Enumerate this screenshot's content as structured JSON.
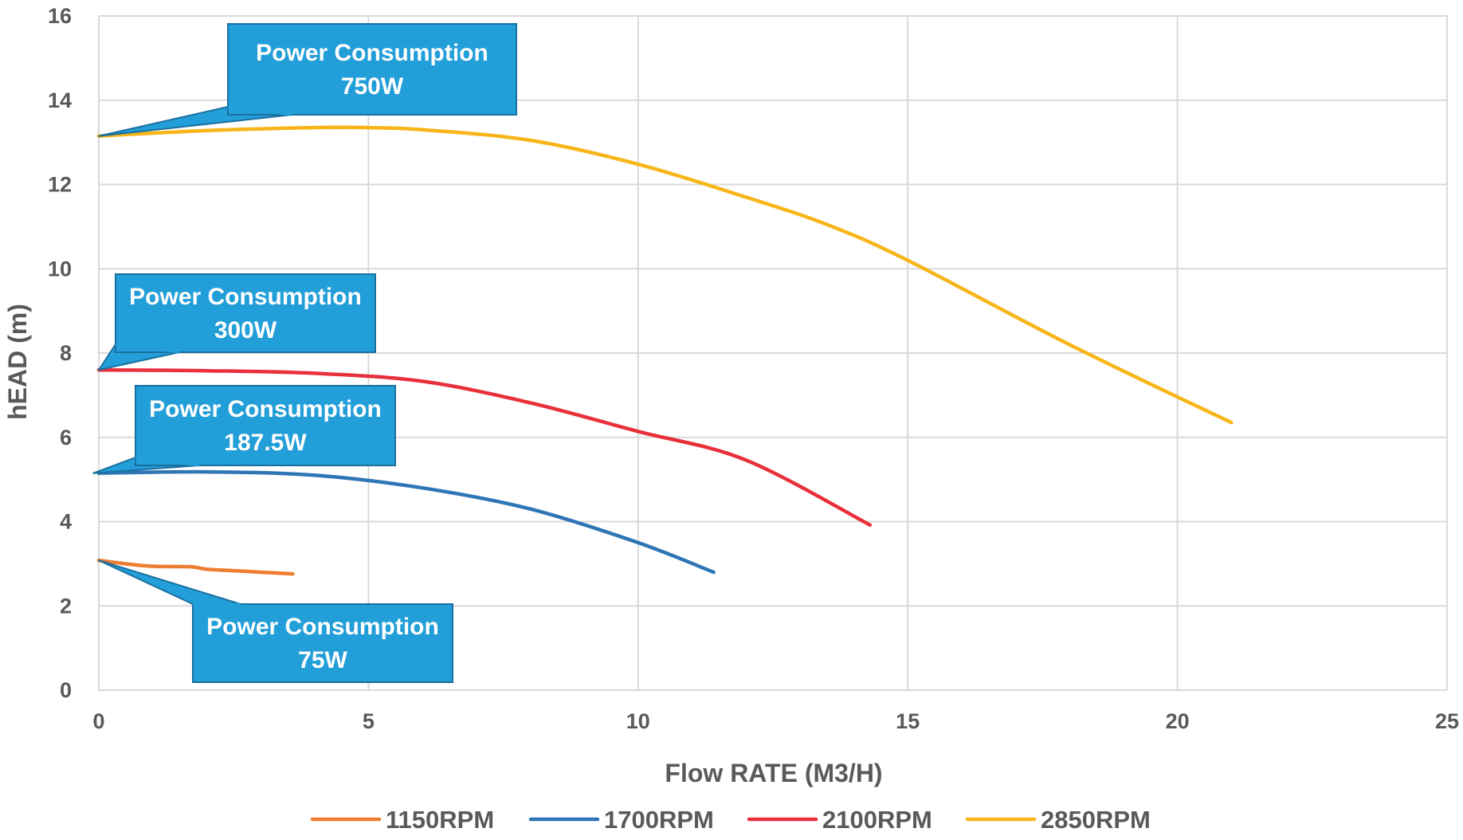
{
  "chart_data": {
    "type": "line",
    "title": "",
    "xlabel": "Flow RATE (M3/H)",
    "ylabel": "hEAD (m)",
    "xlim": [
      0,
      25
    ],
    "ylim": [
      0,
      16
    ],
    "xticks": [
      "0",
      "5",
      "10",
      "15",
      "20",
      "25"
    ],
    "yticks": [
      "0",
      "2",
      "4",
      "6",
      "8",
      "10",
      "12",
      "14",
      "16"
    ],
    "grid": true,
    "legend_position": "bottom",
    "series": [
      {
        "name": "1150RPM",
        "color": "#ED7D31",
        "x": [
          0,
          0.5,
          1.0,
          1.7,
          2.0,
          2.6,
          3.0,
          3.6
        ],
        "y": [
          3.08,
          3.0,
          2.94,
          2.93,
          2.87,
          2.83,
          2.8,
          2.76
        ]
      },
      {
        "name": "1700RPM",
        "color": "#2E75B6",
        "x": [
          0,
          2,
          4,
          6,
          8,
          10,
          11.4
        ],
        "y": [
          5.15,
          5.18,
          5.1,
          4.8,
          4.3,
          3.5,
          2.8
        ]
      },
      {
        "name": "2100RPM",
        "color": "#E8303A",
        "x": [
          0,
          2,
          4,
          6,
          8,
          10,
          12,
          14.3
        ],
        "y": [
          7.6,
          7.58,
          7.52,
          7.33,
          6.82,
          6.14,
          5.46,
          3.92
        ]
      },
      {
        "name": "2850RPM",
        "color": "#F7B519",
        "x": [
          0,
          2,
          4,
          5,
          6,
          8,
          10,
          12,
          13.5,
          15,
          18,
          21
        ],
        "y": [
          13.15,
          13.28,
          13.35,
          13.35,
          13.3,
          13.05,
          12.48,
          11.7,
          11.05,
          10.2,
          8.2,
          6.35
        ]
      }
    ],
    "annotations": [
      {
        "lines": [
          "Power Consumption",
          "750W"
        ],
        "point": [
          0,
          13.15
        ]
      },
      {
        "lines": [
          "Power Consumption",
          "300W"
        ],
        "point": [
          0,
          7.6
        ]
      },
      {
        "lines": [
          "Power Consumption",
          "187.5W"
        ],
        "point": [
          -0.1,
          5.15
        ]
      },
      {
        "lines": [
          "Power Consumption",
          "75W"
        ],
        "point": [
          0,
          3.08
        ]
      }
    ],
    "callout_color": "#229ED8"
  }
}
